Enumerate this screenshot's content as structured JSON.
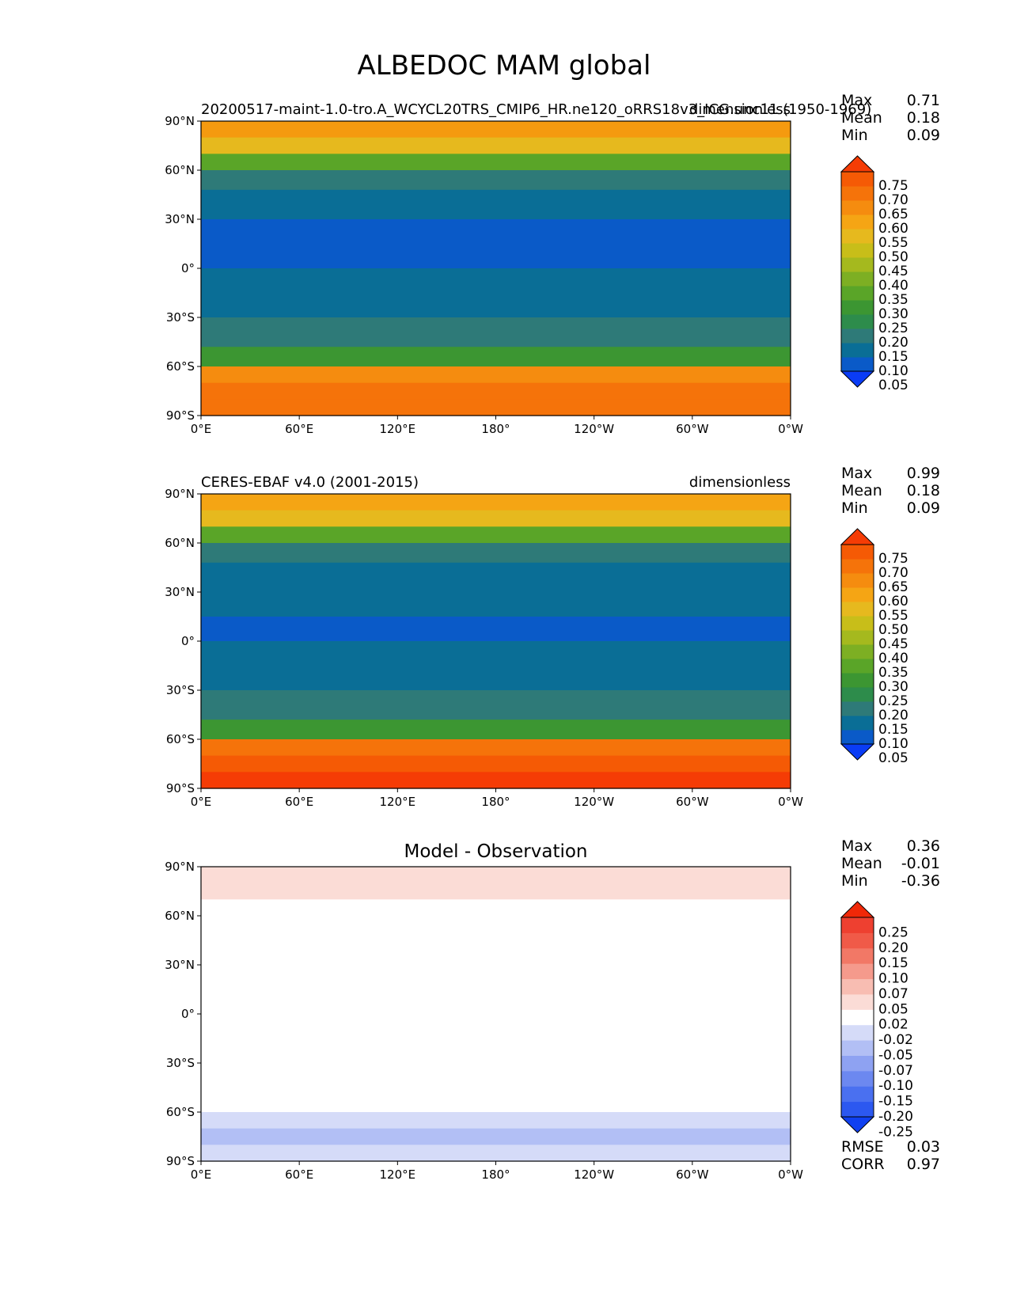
{
  "figure": {
    "title": "ALBEDOC MAM global"
  },
  "panels": [
    {
      "subtitle_left": "20200517-maint-1.0-tro.A_WCYCL20TRS_CMIP6_HR.ne120_oRRS18v3_ICG.unc11 (1950-1969)",
      "subtitle_right": "dimensionless",
      "center_title": "",
      "stats": [
        {
          "label": "Max",
          "value": "0.71"
        },
        {
          "label": "Mean",
          "value": "0.18"
        },
        {
          "label": "Min",
          "value": "0.09"
        }
      ],
      "extra_stats": []
    },
    {
      "subtitle_left": "CERES-EBAF v4.0 (2001-2015)",
      "subtitle_right": "dimensionless",
      "center_title": "",
      "stats": [
        {
          "label": "Max",
          "value": "0.99"
        },
        {
          "label": "Mean",
          "value": "0.18"
        },
        {
          "label": "Min",
          "value": "0.09"
        }
      ],
      "extra_stats": []
    },
    {
      "subtitle_left": "",
      "subtitle_right": "",
      "center_title": "Model - Observation",
      "stats": [
        {
          "label": "Max",
          "value": "0.36"
        },
        {
          "label": "Mean",
          "value": "-0.01"
        },
        {
          "label": "Min",
          "value": "-0.36"
        }
      ],
      "extra_stats": [
        {
          "label": "RMSE",
          "value": "0.03"
        },
        {
          "label": "CORR",
          "value": "0.97"
        }
      ]
    }
  ],
  "chart_data": [
    {
      "type": "heatmap",
      "map": "global cylindrical equidistant, centered 180°",
      "x_ticks": [
        "0°E",
        "60°E",
        "120°E",
        "180°",
        "120°W",
        "60°W",
        "0°W"
      ],
      "y_ticks": [
        "90°N",
        "60°N",
        "30°N",
        "0°",
        "30°S",
        "60°S",
        "90°S"
      ],
      "colorbar": {
        "labels": [
          "0.75",
          "0.70",
          "0.65",
          "0.60",
          "0.55",
          "0.50",
          "0.45",
          "0.40",
          "0.35",
          "0.30",
          "0.25",
          "0.20",
          "0.15",
          "0.10",
          "0.05"
        ],
        "colors": [
          "#0a3cf5",
          "#0a5ac8",
          "#0a6e96",
          "#2e7a78",
          "#2d8c4b",
          "#3c9632",
          "#5aa528",
          "#7daf23",
          "#a5b91e",
          "#c8be19",
          "#e6b91e",
          "#f5a514",
          "#f58c0f",
          "#f5730a",
          "#f55a05",
          "#f53c05"
        ]
      },
      "zonal_profile": {
        "lat_edges": [
          90,
          80,
          70,
          60,
          48,
          30,
          15,
          0,
          -15,
          -30,
          -48,
          -60,
          -70,
          -80,
          -90
        ],
        "band_colors": [
          "#f59a0f",
          "#e6b91e",
          "#5aa528",
          "#2e7a78",
          "#0a6e96",
          "#0a5ac8",
          "#0a5ac8",
          "#0a6e96",
          "#0a6e96",
          "#2e7a78",
          "#3c9632",
          "#f58c0f",
          "#f5730a",
          "#f5730a"
        ]
      }
    },
    {
      "type": "heatmap",
      "map": "global cylindrical equidistant, centered 180°",
      "x_ticks": [
        "0°E",
        "60°E",
        "120°E",
        "180°",
        "120°W",
        "60°W",
        "0°W"
      ],
      "y_ticks": [
        "90°N",
        "60°N",
        "30°N",
        "0°",
        "30°S",
        "60°S",
        "90°S"
      ],
      "colorbar": {
        "labels": [
          "0.75",
          "0.70",
          "0.65",
          "0.60",
          "0.55",
          "0.50",
          "0.45",
          "0.40",
          "0.35",
          "0.30",
          "0.25",
          "0.20",
          "0.15",
          "0.10",
          "0.05"
        ],
        "colors": [
          "#0a3cf5",
          "#0a5ac8",
          "#0a6e96",
          "#2e7a78",
          "#2d8c4b",
          "#3c9632",
          "#5aa528",
          "#7daf23",
          "#a5b91e",
          "#c8be19",
          "#e6b91e",
          "#f5a514",
          "#f58c0f",
          "#f5730a",
          "#f55a05",
          "#f53c05"
        ]
      },
      "zonal_profile": {
        "lat_edges": [
          90,
          80,
          70,
          60,
          48,
          30,
          15,
          0,
          -15,
          -30,
          -48,
          -60,
          -70,
          -80,
          -90
        ],
        "band_colors": [
          "#f5a514",
          "#e6b91e",
          "#5aa528",
          "#2e7a78",
          "#0a6e96",
          "#0a6e96",
          "#0a5ac8",
          "#0a6e96",
          "#0a6e96",
          "#2e7a78",
          "#3c9632",
          "#f5730a",
          "#f55a05",
          "#f53c05"
        ]
      }
    },
    {
      "type": "heatmap",
      "map": "global cylindrical equidistant, centered 180°",
      "x_ticks": [
        "0°E",
        "60°E",
        "120°E",
        "180°",
        "120°W",
        "60°W",
        "0°W"
      ],
      "y_ticks": [
        "90°N",
        "60°N",
        "30°N",
        "0°",
        "30°S",
        "60°S",
        "90°S"
      ],
      "colorbar": {
        "labels": [
          "0.25",
          "0.20",
          "0.15",
          "0.10",
          "0.07",
          "0.05",
          "0.02",
          "-0.02",
          "-0.05",
          "-0.07",
          "-0.10",
          "-0.15",
          "-0.20",
          "-0.25"
        ],
        "colors": [
          "#1040f0",
          "#2c58f0",
          "#4a70f0",
          "#6c88f0",
          "#8ea2f2",
          "#b2bff5",
          "#d5dbf8",
          "#ffffff",
          "#fbdcd6",
          "#f8bdb2",
          "#f59a8c",
          "#f27866",
          "#f05a48",
          "#ee4030",
          "#f02808"
        ]
      },
      "zonal_profile": {
        "lat_edges": [
          90,
          80,
          70,
          60,
          48,
          30,
          15,
          0,
          -15,
          -30,
          -48,
          -60,
          -70,
          -80,
          -90
        ],
        "band_colors": [
          "#fbdcd6",
          "#fbdcd6",
          "#ffffff",
          "#ffffff",
          "#ffffff",
          "#ffffff",
          "#ffffff",
          "#ffffff",
          "#ffffff",
          "#ffffff",
          "#ffffff",
          "#d5dbf8",
          "#b2bff5",
          "#d5dbf8"
        ]
      }
    }
  ]
}
